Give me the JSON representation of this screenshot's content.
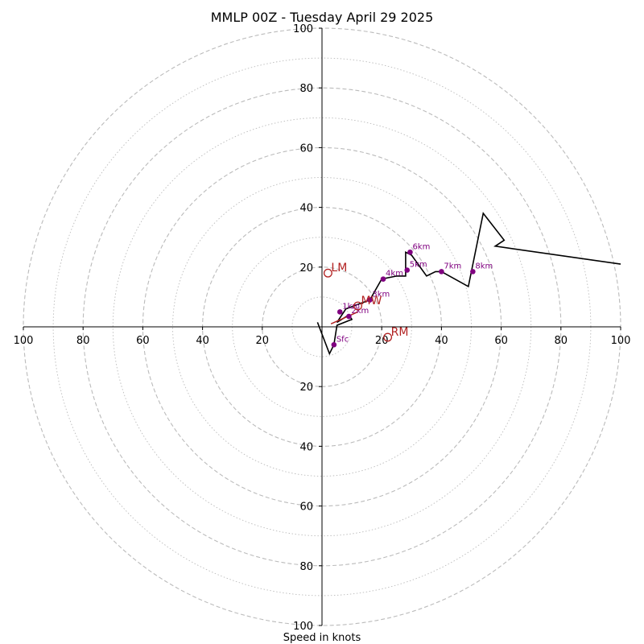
{
  "chart_data": {
    "type": "hodograph",
    "title": "MMLP 00Z - Tuesday April 29 2025",
    "xlabel": "Speed in knots",
    "range": [
      -100,
      100
    ],
    "rings_major": [
      10,
      20,
      30,
      40,
      50,
      60,
      70,
      80,
      90,
      100
    ],
    "rings_dashed": [
      20,
      40,
      60,
      80,
      100
    ],
    "tick_labels": [
      "100",
      "80",
      "60",
      "40",
      "20",
      "20",
      "40",
      "60",
      "80",
      "100"
    ],
    "hodograph_line": [
      [
        -1.5,
        1.5
      ],
      [
        2.5,
        -9
      ],
      [
        4,
        -6
      ],
      [
        5,
        0.5
      ],
      [
        10,
        2.5
      ],
      [
        9,
        4
      ],
      [
        5,
        1.5
      ],
      [
        8,
        6
      ],
      [
        16,
        9
      ],
      [
        20,
        16
      ],
      [
        25,
        17
      ],
      [
        28,
        17
      ],
      [
        28,
        19
      ],
      [
        28,
        25
      ],
      [
        30,
        24
      ],
      [
        35,
        17
      ],
      [
        38,
        18.5
      ],
      [
        40,
        18.5
      ],
      [
        49,
        13.5
      ],
      [
        54,
        38
      ],
      [
        61,
        29
      ],
      [
        58,
        27
      ],
      [
        100,
        21
      ]
    ],
    "height_markers": [
      {
        "label": "Sfc",
        "u": 4,
        "v": -6
      },
      {
        "label": "1km",
        "u": 6,
        "v": 5
      },
      {
        "label": "2km",
        "u": 9,
        "v": 3.5
      },
      {
        "label": "3km",
        "u": 16,
        "v": 9
      },
      {
        "label": "4km",
        "u": 20.5,
        "v": 16
      },
      {
        "label": "5km",
        "u": 28.5,
        "v": 19
      },
      {
        "label": "6km",
        "u": 29.5,
        "v": 25
      },
      {
        "label": "7km",
        "u": 40,
        "v": 18.5
      },
      {
        "label": "8km",
        "u": 50.5,
        "v": 18.5
      }
    ],
    "storm_motion": [
      {
        "label": "LM",
        "u": 2,
        "v": 18
      },
      {
        "label": "RM",
        "u": 22,
        "v": -3.5
      },
      {
        "label": "MW",
        "u": 12,
        "v": 7
      }
    ],
    "bunkers_shear_segment": [
      [
        3,
        1
      ],
      [
        12,
        5
      ]
    ],
    "colors": {
      "hodograph": "#000000",
      "height_marker": "#800080",
      "storm_motion": "#b22222",
      "grid": "#bbbbbb"
    }
  }
}
